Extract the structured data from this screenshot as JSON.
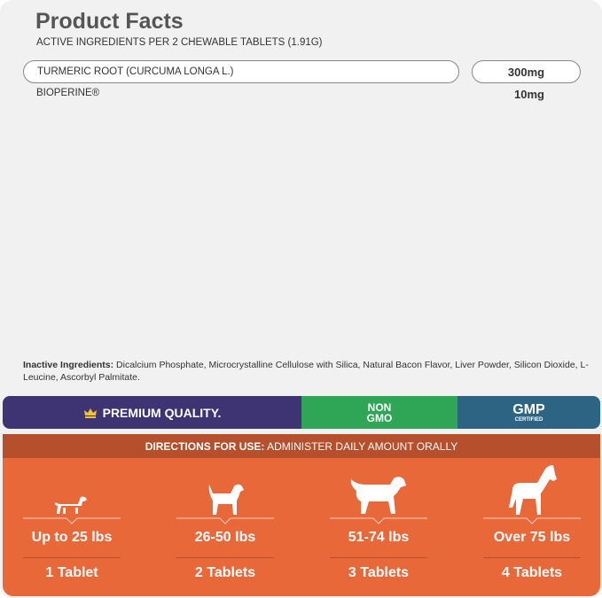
{
  "header": {
    "title": "Product Facts",
    "subtitle": "ACTIVE INGREDIENTS PER 2 CHEWABLE TABLETS (1.91G)"
  },
  "ingredients": [
    {
      "name": "TURMERIC ROOT (CURCUMA LONGA L.)",
      "amount": "300mg"
    },
    {
      "name": "BIOPERINE®",
      "amount": "10mg"
    }
  ],
  "inactive": {
    "label": "Inactive Ingredients:",
    "text": " Dicalcium Phosphate, Microcrystalline Cellulose with Silica, Natural Bacon Flavor, Liver Powder, Silicon Dioxide, L-Leucine, Ascorbyl Palmitate."
  },
  "badges": {
    "premium": "PREMIUM QUALITY.",
    "nongmo_1": "NON",
    "nongmo_2": "GMO",
    "gmp": "GMP",
    "gmp_sub": "CERTIFIED",
    "colors": {
      "purple": "#3e3473",
      "green": "#2ea656",
      "blue": "#2e6483",
      "orange": "#e9683a"
    }
  },
  "directions": {
    "label": "DIRECTIONS FOR USE:",
    "text": " ADMINISTER DAILY AMOUNT ORALLY",
    "columns": [
      {
        "weight": "Up to 25 lbs",
        "dose": "1 Tablet",
        "icon": "dachshund-icon"
      },
      {
        "weight": "26-50 lbs",
        "dose": "2 Tablets",
        "icon": "medium-dog-icon"
      },
      {
        "weight": "51-74 lbs",
        "dose": "3 Tablets",
        "icon": "retriever-icon"
      },
      {
        "weight": "Over 75 lbs",
        "dose": "4 Tablets",
        "icon": "boxer-icon"
      }
    ]
  }
}
